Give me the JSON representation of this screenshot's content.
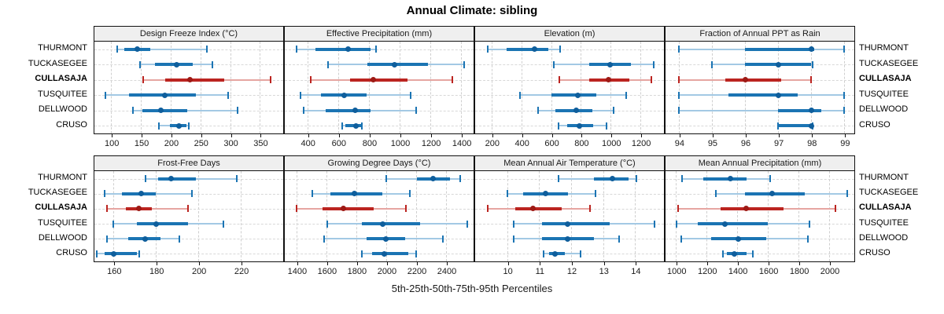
{
  "title": "Annual Climate: sibling",
  "xlabel": "5th-25th-50th-75th-95th Percentiles",
  "colors": {
    "blue": "#1b74b3",
    "blue_light": "#a3c9e4",
    "blue_dot": "#0f5e9c",
    "red": "#bb2420",
    "red_light": "#e6a5a1",
    "red_dot": "#9e1a15",
    "strip_bg": "#efefef",
    "grid": "#cfcfcf"
  },
  "chart_data": {
    "type": "scatter",
    "subtype": "trellis-percentile-interval-dotplot",
    "title": "Annual Climate: sibling",
    "xlabel": "5th-25th-50th-75th-95th Percentiles",
    "legend_position": "none",
    "grid": "dashed",
    "sites": [
      "THURMONT",
      "TUCKASEGEE",
      "CULLASAJA",
      "TUSQUITEE",
      "DELLWOOD",
      "CRUSO"
    ],
    "highlight_site": "CULLASAJA",
    "percentile_labels": [
      "5th",
      "25th",
      "50th",
      "75th",
      "95th"
    ],
    "panels": [
      {
        "label": "Design Freeze Index (°C)",
        "grid_row": 1,
        "grid_col": 1,
        "axis": {
          "min": 72,
          "max": 389,
          "ticks": [
            100,
            150,
            200,
            250,
            300,
            350
          ]
        },
        "values": {
          "THURMONT": [
            110,
            122,
            144,
            166,
            261
          ],
          "TUCKASEGEE": [
            149,
            174,
            210,
            237,
            270
          ],
          "CULLASAJA": [
            154,
            191,
            233,
            290,
            368
          ],
          "TUSQUITEE": [
            91,
            130,
            190,
            243,
            297
          ],
          "DELLWOOD": [
            137,
            152,
            183,
            228,
            312
          ],
          "CRUSO": [
            180,
            199,
            214,
            226,
            230
          ]
        }
      },
      {
        "label": "Effective Precipitation (mm)",
        "grid_row": 1,
        "grid_col": 2,
        "axis": {
          "min": 253,
          "max": 1481,
          "ticks": [
            400,
            600,
            800,
            1000,
            1200,
            1400
          ]
        },
        "values": {
          "THURMONT": [
            330,
            455,
            665,
            810,
            845
          ],
          "TUCKASEGEE": [
            535,
            790,
            965,
            1185,
            1420
          ],
          "CULLASAJA": [
            420,
            680,
            830,
            1050,
            1345
          ],
          "TUSQUITEE": [
            355,
            490,
            640,
            785,
            1070
          ],
          "DELLWOOD": [
            375,
            520,
            710,
            810,
            1110
          ],
          "CRUSO": [
            625,
            645,
            715,
            750,
            755
          ]
        }
      },
      {
        "label": "Elevation (m)",
        "grid_row": 1,
        "grid_col": 3,
        "axis": {
          "min": 90,
          "max": 1358,
          "ticks": [
            200,
            400,
            600,
            800,
            1000,
            1200
          ]
        },
        "values": {
          "THURMONT": [
            175,
            300,
            490,
            580,
            660
          ],
          "TUCKASEGEE": [
            620,
            855,
            995,
            1135,
            1290
          ],
          "CULLASAJA": [
            655,
            855,
            985,
            1125,
            1275
          ],
          "TUSQUITEE": [
            390,
            600,
            780,
            905,
            1105
          ],
          "DELLWOOD": [
            515,
            630,
            770,
            875,
            1020
          ],
          "CRUSO": [
            650,
            710,
            790,
            880,
            970
          ]
        }
      },
      {
        "label": "Fraction of Annual PPT as Rain",
        "grid_row": 1,
        "grid_col": 4,
        "axis": {
          "min": 93.6,
          "max": 99.3,
          "ticks": [
            94,
            95,
            96,
            97,
            98,
            99
          ]
        },
        "values": {
          "THURMONT": [
            94,
            96,
            98,
            98.1,
            99
          ],
          "TUCKASEGEE": [
            95,
            96,
            97,
            98,
            98.05
          ],
          "CULLASAJA": [
            94,
            95.4,
            96,
            97.1,
            98
          ],
          "TUSQUITEE": [
            94,
            95.5,
            97,
            97.6,
            99
          ],
          "DELLWOOD": [
            94,
            97,
            98,
            98.3,
            99
          ],
          "CRUSO": [
            97,
            97,
            98,
            98,
            98.05
          ]
        }
      },
      {
        "label": "Frost-Free Days",
        "grid_row": 2,
        "grid_col": 1,
        "axis": {
          "min": 151,
          "max": 240,
          "ticks": [
            160,
            180,
            200,
            220
          ]
        },
        "values": {
          "THURMONT": [
            175,
            181,
            187,
            199,
            218
          ],
          "TUCKASEGEE": [
            156,
            164,
            173,
            180,
            197
          ],
          "CULLASAJA": [
            157,
            166,
            172,
            178,
            195
          ],
          "TUSQUITEE": [
            160,
            171,
            180,
            195,
            212
          ],
          "DELLWOOD": [
            157,
            167,
            175,
            182,
            191
          ],
          "CRUSO": [
            152,
            156,
            160,
            171,
            172
          ]
        }
      },
      {
        "label": "Growing Degree Days (°C)",
        "grid_row": 2,
        "grid_col": 2,
        "axis": {
          "min": 1322,
          "max": 2584,
          "ticks": [
            1400,
            1600,
            1800,
            2000,
            2200,
            2400
          ]
        },
        "values": {
          "THURMONT": [
            2000,
            2205,
            2315,
            2425,
            2495
          ],
          "TUCKASEGEE": [
            1505,
            1625,
            1785,
            1975,
            2160
          ],
          "CULLASAJA": [
            1400,
            1575,
            1715,
            1915,
            2130
          ],
          "TUSQUITEE": [
            1605,
            1835,
            1975,
            2225,
            2540
          ],
          "DELLWOOD": [
            1585,
            1870,
            2000,
            2125,
            2380
          ],
          "CRUSO": [
            1835,
            1905,
            1985,
            2145,
            2200
          ]
        }
      },
      {
        "label": "Mean Annual Air Temperature (°C)",
        "grid_row": 2,
        "grid_col": 3,
        "axis": {
          "min": 9.0,
          "max": 14.9,
          "ticks": [
            10,
            11,
            12,
            13,
            14
          ]
        },
        "values": {
          "THURMONT": [
            11.6,
            12.7,
            13.3,
            13.8,
            14.05
          ],
          "TUCKASEGEE": [
            10.0,
            10.5,
            11.2,
            11.9,
            12.75
          ],
          "CULLASAJA": [
            9.4,
            10.25,
            10.8,
            11.7,
            12.6
          ],
          "TUSQUITEE": [
            10.2,
            11.1,
            11.9,
            13.2,
            14.6
          ],
          "DELLWOOD": [
            10.2,
            11.1,
            11.9,
            12.7,
            13.5
          ],
          "CRUSO": [
            11.15,
            11.3,
            11.5,
            11.8,
            12.3
          ]
        }
      },
      {
        "label": "Mean Annual Precipitation (mm)",
        "grid_row": 2,
        "grid_col": 4,
        "axis": {
          "min": 932,
          "max": 2164,
          "ticks": [
            1000,
            1200,
            1400,
            1600,
            1800,
            2000
          ]
        },
        "values": {
          "THURMONT": [
            1040,
            1180,
            1355,
            1460,
            1615
          ],
          "TUCKASEGEE": [
            1260,
            1450,
            1625,
            1840,
            2120
          ],
          "CULLASAJA": [
            1015,
            1290,
            1460,
            1700,
            2040
          ],
          "TUSQUITEE": [
            1005,
            1145,
            1320,
            1600,
            1870
          ],
          "DELLWOOD": [
            1035,
            1230,
            1405,
            1590,
            1860
          ],
          "CRUSO": [
            1305,
            1330,
            1380,
            1460,
            1500
          ]
        }
      }
    ]
  }
}
